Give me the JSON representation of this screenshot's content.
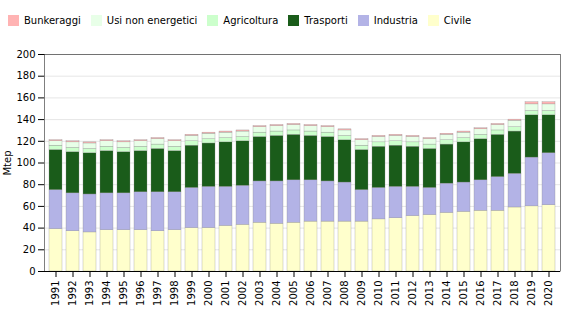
{
  "chart_data": {
    "type": "bar",
    "stacked": true,
    "categories": [
      "1991",
      "1992",
      "1993",
      "1994",
      "1995",
      "1996",
      "1997",
      "1998",
      "1999",
      "2000",
      "2001",
      "2002",
      "2003",
      "2004",
      "2005",
      "2006",
      "2007",
      "2008",
      "2009",
      "2010",
      "2011",
      "2012",
      "2013",
      "2014",
      "2015",
      "2016",
      "2017",
      "2018",
      "2019",
      "2020"
    ],
    "series": [
      {
        "name": "Civile",
        "color": "#ffffcc",
        "values": [
          39,
          37,
          36,
          38,
          38,
          38,
          37,
          38,
          40,
          40,
          42,
          43,
          45,
          44,
          45,
          46,
          46,
          46,
          46,
          48,
          49,
          51,
          52,
          54,
          55,
          56,
          56,
          59,
          60,
          61
        ]
      },
      {
        "name": "Industria",
        "color": "#b3b3e6",
        "values": [
          36,
          35,
          35,
          34,
          34,
          35,
          36,
          35,
          37,
          38,
          36,
          36,
          38,
          39,
          39,
          38,
          37,
          36,
          29,
          29,
          29,
          27,
          25,
          27,
          27,
          28,
          31,
          31,
          45,
          48
        ]
      },
      {
        "name": "Trasporti",
        "color": "#1a5c1a",
        "values": [
          37,
          38,
          38,
          39,
          38,
          38,
          40,
          38,
          39,
          40,
          41,
          41,
          41,
          42,
          42,
          41,
          41,
          39,
          37,
          38,
          38,
          37,
          36,
          36,
          37,
          38,
          39,
          39,
          39,
          35
        ]
      },
      {
        "name": "Agricoltura",
        "color": "#ccffcc",
        "values": [
          4,
          4,
          4,
          4,
          4,
          4,
          4,
          4,
          4,
          4,
          4,
          4,
          4,
          4,
          4,
          4,
          4,
          4,
          4,
          4,
          4,
          4,
          4,
          4,
          4,
          4,
          4,
          4,
          4,
          4
        ]
      },
      {
        "name": "Usi non energetici",
        "color": "#e8ffe8",
        "values": [
          4,
          5,
          5,
          5,
          5,
          5,
          5,
          5,
          5,
          5,
          5,
          5,
          5,
          5,
          5,
          5,
          5,
          5,
          5,
          5,
          5,
          5,
          5,
          5,
          5,
          5,
          5,
          6,
          6,
          6
        ]
      },
      {
        "name": "Bunkeraggi",
        "color": "#ffb3b3",
        "values": [
          1,
          1,
          1,
          1,
          1,
          1,
          1,
          1,
          1,
          1,
          1,
          1,
          1,
          1,
          1,
          1,
          1,
          1,
          1,
          1,
          1,
          1,
          1,
          1,
          1,
          1,
          1,
          1,
          2,
          2
        ]
      }
    ],
    "ylabel": "Mtep",
    "ylim": [
      0,
      200
    ],
    "yticks": [
      0,
      20,
      40,
      60,
      80,
      100,
      120,
      140,
      160,
      180,
      200
    ],
    "grid": true,
    "legend": "upper left"
  }
}
